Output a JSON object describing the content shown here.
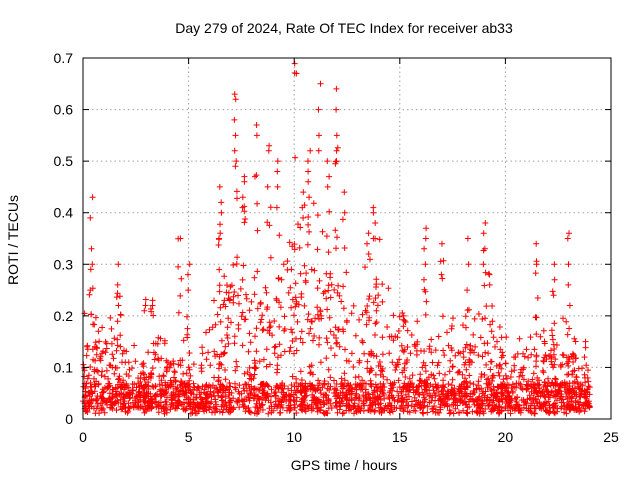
{
  "chart_data": {
    "type": "scatter",
    "title": "Day 279 of 2024, Rate Of TEC Index for receiver ab33",
    "xlabel": "GPS time / hours",
    "ylabel": "ROTI / TECUs",
    "xlim": [
      0,
      25
    ],
    "ylim": [
      0,
      0.7
    ],
    "x_ticks": [
      "0",
      "5",
      "10",
      "15",
      "20",
      "25"
    ],
    "y_ticks": [
      "0",
      "0.1",
      "0.2",
      "0.3",
      "0.4",
      "0.5",
      "0.6",
      "0.7"
    ],
    "grid": true,
    "marker": "plus",
    "color": "#ff0000",
    "background_x_range": [
      0,
      24
    ],
    "envelope": {
      "x": [
        0,
        0.5,
        1.0,
        1.5,
        2.0,
        2.5,
        3.0,
        3.5,
        4.0,
        4.5,
        5.0,
        5.5,
        6.0,
        6.5,
        7.0,
        7.5,
        8.0,
        8.5,
        9.0,
        9.5,
        10.0,
        10.5,
        11.0,
        11.5,
        12.0,
        12.5,
        13.0,
        13.5,
        14.0,
        14.5,
        15.0,
        15.5,
        16.0,
        16.5,
        17.0,
        17.5,
        18.0,
        18.5,
        19.0,
        19.5,
        20.0,
        20.5,
        21.0,
        21.5,
        22.0,
        22.5,
        23.0,
        23.5,
        24.0
      ],
      "y": [
        0.19,
        0.2,
        0.18,
        0.2,
        0.17,
        0.14,
        0.12,
        0.15,
        0.13,
        0.14,
        0.16,
        0.14,
        0.18,
        0.3,
        0.35,
        0.33,
        0.32,
        0.34,
        0.36,
        0.37,
        0.36,
        0.4,
        0.42,
        0.36,
        0.38,
        0.3,
        0.3,
        0.32,
        0.34,
        0.24,
        0.21,
        0.18,
        0.2,
        0.17,
        0.16,
        0.19,
        0.17,
        0.18,
        0.2,
        0.17,
        0.16,
        0.14,
        0.15,
        0.14,
        0.16,
        0.17,
        0.2,
        0.1,
        0.07
      ]
    },
    "peaks": [
      {
        "x": 0.4,
        "values": [
          0.43,
          0.39,
          0.33,
          0.3,
          0.29,
          0.25
        ]
      },
      {
        "x": 1.7,
        "values": [
          0.3,
          0.26,
          0.22
        ]
      },
      {
        "x": 2.9,
        "values": [
          0.22,
          0.21
        ]
      },
      {
        "x": 3.3,
        "values": [
          0.23,
          0.22
        ]
      },
      {
        "x": 4.6,
        "values": [
          0.35
        ]
      },
      {
        "x": 5.0,
        "values": [
          0.3,
          0.28,
          0.25
        ]
      },
      {
        "x": 6.5,
        "values": [
          0.45,
          0.42,
          0.4,
          0.36
        ]
      },
      {
        "x": 7.2,
        "values": [
          0.63,
          0.62,
          0.58,
          0.55,
          0.52,
          0.5,
          0.49
        ]
      },
      {
        "x": 7.6,
        "values": [
          0.47,
          0.46,
          0.43,
          0.41
        ]
      },
      {
        "x": 8.2,
        "values": [
          0.57,
          0.55,
          0.47
        ]
      },
      {
        "x": 8.8,
        "values": [
          0.53,
          0.52,
          0.45
        ]
      },
      {
        "x": 9.2,
        "values": [
          0.5,
          0.48,
          0.45,
          0.41
        ]
      },
      {
        "x": 10.1,
        "values": [
          0.67
        ]
      },
      {
        "x": 10.4,
        "values": [
          0.44,
          0.41,
          0.39
        ]
      },
      {
        "x": 10.7,
        "values": [
          0.52,
          0.5,
          0.48,
          0.46,
          0.43
        ]
      },
      {
        "x": 11.2,
        "values": [
          0.65,
          0.6,
          0.55,
          0.52
        ]
      },
      {
        "x": 11.6,
        "values": [
          0.5,
          0.47,
          0.45
        ]
      },
      {
        "x": 12.0,
        "values": [
          0.64,
          0.6,
          0.55,
          0.52,
          0.5
        ]
      },
      {
        "x": 12.4,
        "values": [
          0.44,
          0.4
        ]
      },
      {
        "x": 13.5,
        "values": [
          0.36,
          0.34,
          0.32
        ]
      },
      {
        "x": 13.8,
        "values": [
          0.41,
          0.4,
          0.38,
          0.35
        ]
      },
      {
        "x": 15.2,
        "values": [
          0.2,
          0.18
        ]
      },
      {
        "x": 16.2,
        "values": [
          0.37,
          0.35,
          0.33,
          0.3
        ]
      },
      {
        "x": 17.0,
        "values": [
          0.34,
          0.28
        ]
      },
      {
        "x": 18.2,
        "values": [
          0.35,
          0.3,
          0.25
        ]
      },
      {
        "x": 19.0,
        "values": [
          0.38,
          0.36,
          0.33,
          0.3
        ]
      },
      {
        "x": 19.3,
        "values": [
          0.28,
          0.26
        ]
      },
      {
        "x": 21.5,
        "values": [
          0.34,
          0.3
        ]
      },
      {
        "x": 22.3,
        "values": [
          0.3,
          0.27,
          0.24
        ]
      },
      {
        "x": 23.0,
        "values": [
          0.36,
          0.35,
          0.3,
          0.26,
          0.22
        ]
      },
      {
        "x": 23.8,
        "values": [
          0.15,
          0.12
        ]
      }
    ]
  }
}
